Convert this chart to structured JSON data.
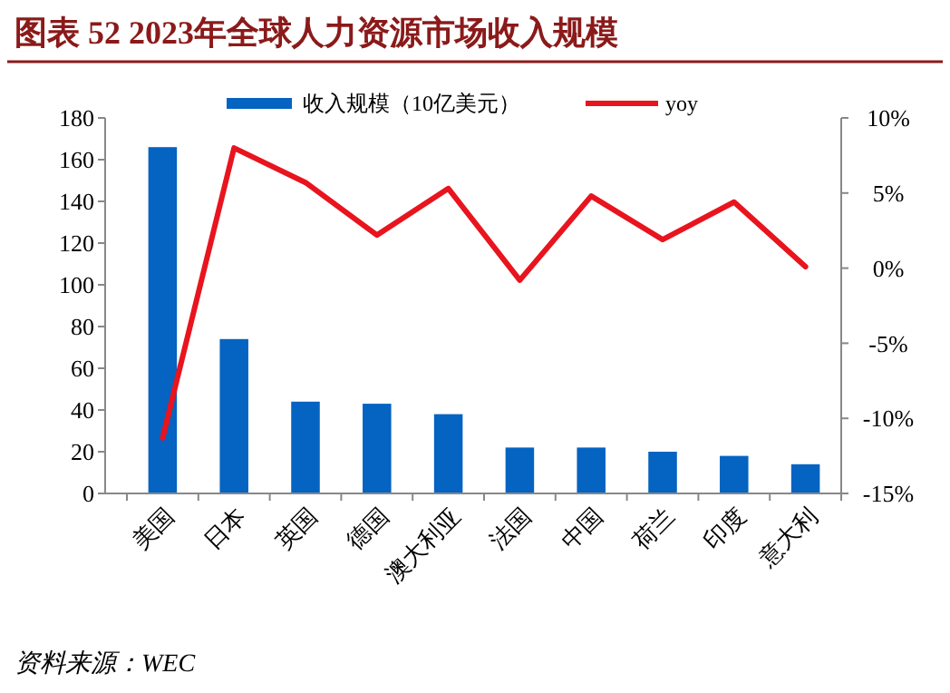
{
  "chart_data": {
    "type": "bar",
    "title": "图表 52  2023年全球人力资源市场收入规模",
    "annotations": [
      "资料来源：WEC"
    ],
    "categories": [
      "美国",
      "日本",
      "英国",
      "德国",
      "澳大利亚",
      "法国",
      "中国",
      "荷兰",
      "印度",
      "意大利"
    ],
    "series": [
      {
        "name": "收入规模（10亿美元）",
        "color": "#0563c1",
        "values": [
          166,
          74,
          44,
          43,
          38,
          22,
          22,
          20,
          18,
          14
        ]
      },
      {
        "name": "yoy",
        "type": "line",
        "axis": "y2",
        "color": "#e8141e",
        "values": [
          -11.3,
          8.0,
          5.7,
          2.2,
          5.3,
          -0.8,
          4.8,
          1.9,
          4.4,
          0.1
        ]
      }
    ],
    "ylim": [
      0,
      180
    ],
    "yticks": [
      0,
      20,
      40,
      60,
      80,
      100,
      120,
      140,
      160,
      180
    ],
    "y2lim": [
      -15,
      10
    ],
    "y2ticks": [
      {
        "value": -15,
        "label": "-15%"
      },
      {
        "value": -10,
        "label": "-10%"
      },
      {
        "value": -5,
        "label": "-5%"
      },
      {
        "value": 0,
        "label": "0%"
      },
      {
        "value": 5,
        "label": "5%"
      },
      {
        "value": 10,
        "label": "10%"
      }
    ],
    "legend": "top",
    "grid": false
  }
}
